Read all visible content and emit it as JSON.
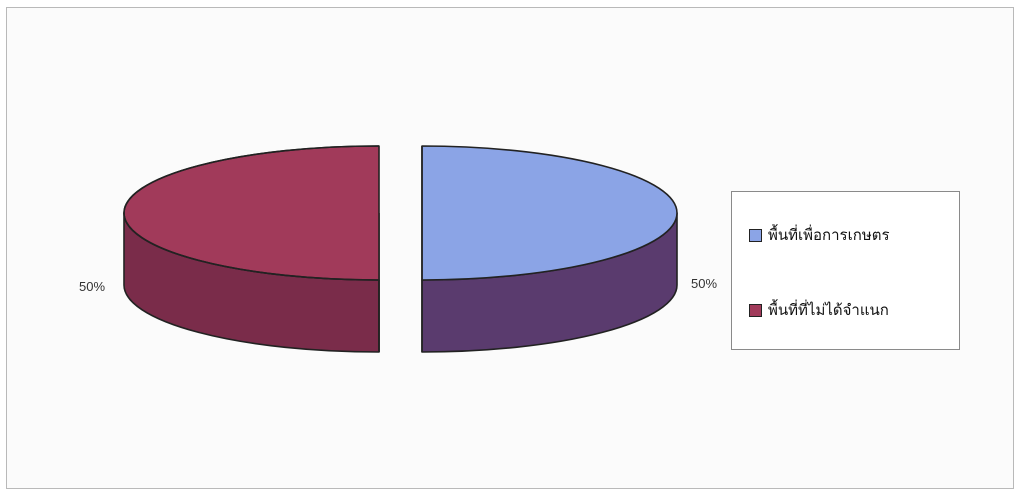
{
  "chart_data": {
    "type": "pie",
    "style": "3d-exploded",
    "legend_position": "right",
    "slices": [
      {
        "name": "พื้นที่เพื่อการเกษตร",
        "value": 50,
        "label": "50%",
        "color": "#8ba4e6",
        "side_color": "#5a3b6e"
      },
      {
        "name": "พื้นที่ที่ไม่ได้จำแนก",
        "value": 50,
        "label": "50%",
        "color": "#a13a5a",
        "side_color": "#7a2c4a"
      }
    ]
  }
}
